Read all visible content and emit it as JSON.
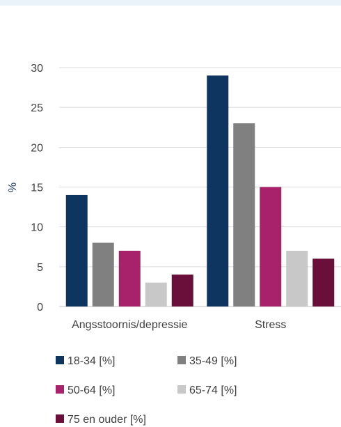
{
  "chart_data": {
    "type": "bar",
    "ylabel": "%",
    "ylim": [
      0,
      30
    ],
    "yticks": [
      0,
      5,
      10,
      15,
      20,
      25,
      30
    ],
    "grid": true,
    "legend_position": "bottom",
    "categories": [
      "Angsstoornis/depressie",
      "Stress"
    ],
    "series": [
      {
        "name": "18-34 [%]",
        "color": "#0e3460",
        "values": [
          14,
          29
        ]
      },
      {
        "name": "35-49 [%]",
        "color": "#808080",
        "values": [
          8,
          23
        ]
      },
      {
        "name": "50-64 [%]",
        "color": "#a8216b",
        "values": [
          7,
          15
        ]
      },
      {
        "name": "65-74 [%]",
        "color": "#c8c8c8",
        "values": [
          3,
          7
        ]
      },
      {
        "name": "75 en ouder [%]",
        "color": "#6a0f3a",
        "values": [
          4,
          6
        ]
      }
    ]
  }
}
